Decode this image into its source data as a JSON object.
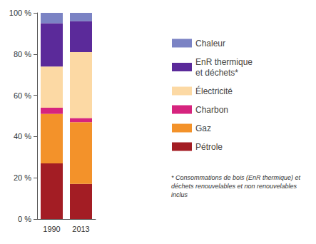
{
  "chart_data": {
    "type": "bar",
    "stacked": true,
    "categories": [
      "1990",
      "2013"
    ],
    "series": [
      {
        "name": "Pétrole",
        "color": "#a31d24",
        "values": [
          27,
          17
        ]
      },
      {
        "name": "Gaz",
        "color": "#f3922a",
        "values": [
          24,
          30
        ]
      },
      {
        "name": "Charbon",
        "color": "#d6247e",
        "values": [
          3,
          2
        ]
      },
      {
        "name": "Électricité",
        "color": "#fcd9a4",
        "values": [
          20,
          32
        ]
      },
      {
        "name": "EnR thermique et déchets*",
        "color": "#5b2a9a",
        "values": [
          21,
          15
        ]
      },
      {
        "name": "Chaleur",
        "color": "#7b83c4",
        "values": [
          5,
          4
        ]
      }
    ],
    "ylim": [
      0,
      100
    ],
    "yticks": [
      {
        "value": 0,
        "label": "0 %"
      },
      {
        "value": 20,
        "label": "20 %"
      },
      {
        "value": 40,
        "label": "40 %"
      },
      {
        "value": 60,
        "label": "60 %"
      },
      {
        "value": 80,
        "label": "80 %"
      },
      {
        "value": 100,
        "label": "100 %"
      }
    ],
    "grid": false,
    "legend": "right",
    "annotation": "* Consommations de bois (EnR thermique) et déchets renouvelables et non renouvelables inclus"
  }
}
